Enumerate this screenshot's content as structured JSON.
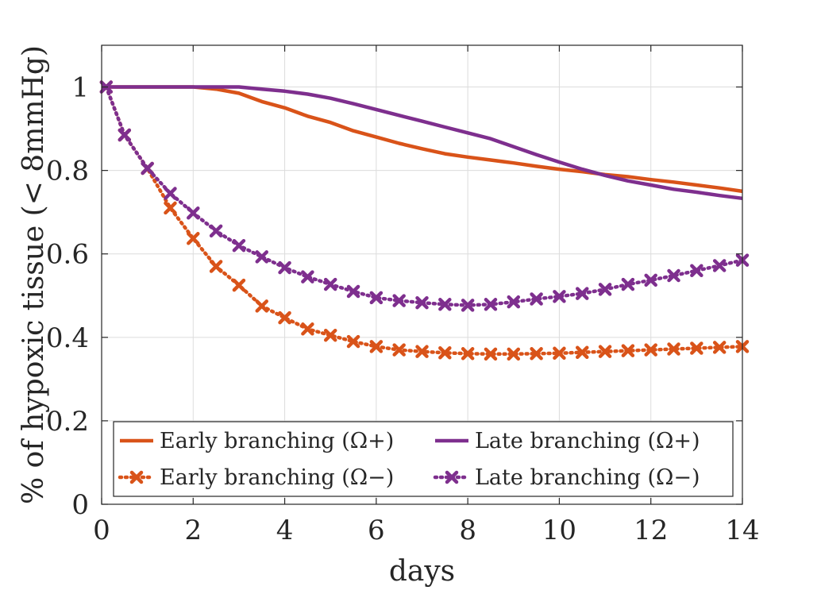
{
  "chart_data": {
    "type": "line",
    "xlabel": "days",
    "ylabel": "% of hypoxic tissue (< 8mmHg)",
    "xlim": [
      0,
      14
    ],
    "ylim": [
      0,
      1.1
    ],
    "xticks": [
      0,
      2,
      4,
      6,
      8,
      10,
      12,
      14
    ],
    "yticks": [
      0,
      0.2,
      0.4,
      0.6,
      0.8,
      1
    ],
    "xtick_labels": [
      "0",
      "2",
      "4",
      "6",
      "8",
      "10",
      "12",
      "14"
    ],
    "ytick_labels": [
      "0",
      "0.2",
      "0.4",
      "0.6",
      "0.8",
      "1"
    ],
    "grid": true,
    "legend_position": "bottom-inside",
    "series": [
      {
        "name": "Early branching (Ω+)",
        "color": "#d95319",
        "style": "solid",
        "x": [
          0,
          1,
          2,
          2.5,
          3,
          3.5,
          4,
          4.5,
          5,
          5.5,
          6,
          6.5,
          7,
          7.5,
          8,
          8.5,
          9,
          9.5,
          10,
          10.5,
          11,
          11.5,
          12,
          12.5,
          13,
          13.5,
          14
        ],
        "y": [
          1.0,
          1.0,
          1.0,
          0.995,
          0.985,
          0.965,
          0.95,
          0.93,
          0.915,
          0.895,
          0.88,
          0.865,
          0.852,
          0.84,
          0.832,
          0.825,
          0.818,
          0.81,
          0.803,
          0.797,
          0.79,
          0.785,
          0.778,
          0.772,
          0.765,
          0.758,
          0.75
        ]
      },
      {
        "name": "Late branching (Ω+)",
        "color": "#7e2f8e",
        "style": "solid",
        "x": [
          0,
          1,
          2,
          3,
          3.5,
          4,
          4.5,
          5,
          5.5,
          6,
          6.5,
          7,
          7.5,
          8,
          8.5,
          9,
          9.5,
          10,
          10.5,
          11,
          11.5,
          12,
          12.5,
          13,
          13.5,
          14
        ],
        "y": [
          1.0,
          1.0,
          1.0,
          1.0,
          0.995,
          0.99,
          0.983,
          0.973,
          0.96,
          0.946,
          0.932,
          0.918,
          0.904,
          0.89,
          0.876,
          0.857,
          0.838,
          0.82,
          0.803,
          0.788,
          0.775,
          0.765,
          0.755,
          0.748,
          0.74,
          0.733
        ]
      },
      {
        "name": "Early branching (Ω−)",
        "color": "#d95319",
        "style": "dotted-x",
        "x": [
          0.1,
          0.5,
          1,
          1.5,
          2,
          2.5,
          3,
          3.5,
          4,
          4.5,
          5,
          5.5,
          6,
          6.5,
          7,
          7.5,
          8,
          8.5,
          9,
          9.5,
          10,
          10.5,
          11,
          11.5,
          12,
          12.5,
          13,
          13.5,
          14
        ],
        "y": [
          1.0,
          0.885,
          0.805,
          0.71,
          0.637,
          0.57,
          0.525,
          0.475,
          0.447,
          0.42,
          0.405,
          0.39,
          0.378,
          0.37,
          0.366,
          0.363,
          0.361,
          0.36,
          0.36,
          0.361,
          0.362,
          0.364,
          0.366,
          0.368,
          0.37,
          0.372,
          0.374,
          0.376,
          0.378
        ]
      },
      {
        "name": "Late branching (Ω−)",
        "color": "#7e2f8e",
        "style": "dotted-x",
        "x": [
          0.1,
          0.5,
          1,
          1.5,
          2,
          2.5,
          3,
          3.5,
          4,
          4.5,
          5,
          5.5,
          6,
          6.5,
          7,
          7.5,
          8,
          8.5,
          9,
          9.5,
          10,
          10.5,
          11,
          11.5,
          12,
          12.5,
          13,
          13.5,
          14
        ],
        "y": [
          1.0,
          0.885,
          0.805,
          0.745,
          0.698,
          0.655,
          0.62,
          0.593,
          0.567,
          0.545,
          0.527,
          0.51,
          0.495,
          0.488,
          0.483,
          0.479,
          0.477,
          0.479,
          0.485,
          0.492,
          0.498,
          0.505,
          0.515,
          0.527,
          0.537,
          0.548,
          0.56,
          0.572,
          0.585
        ]
      }
    ]
  }
}
